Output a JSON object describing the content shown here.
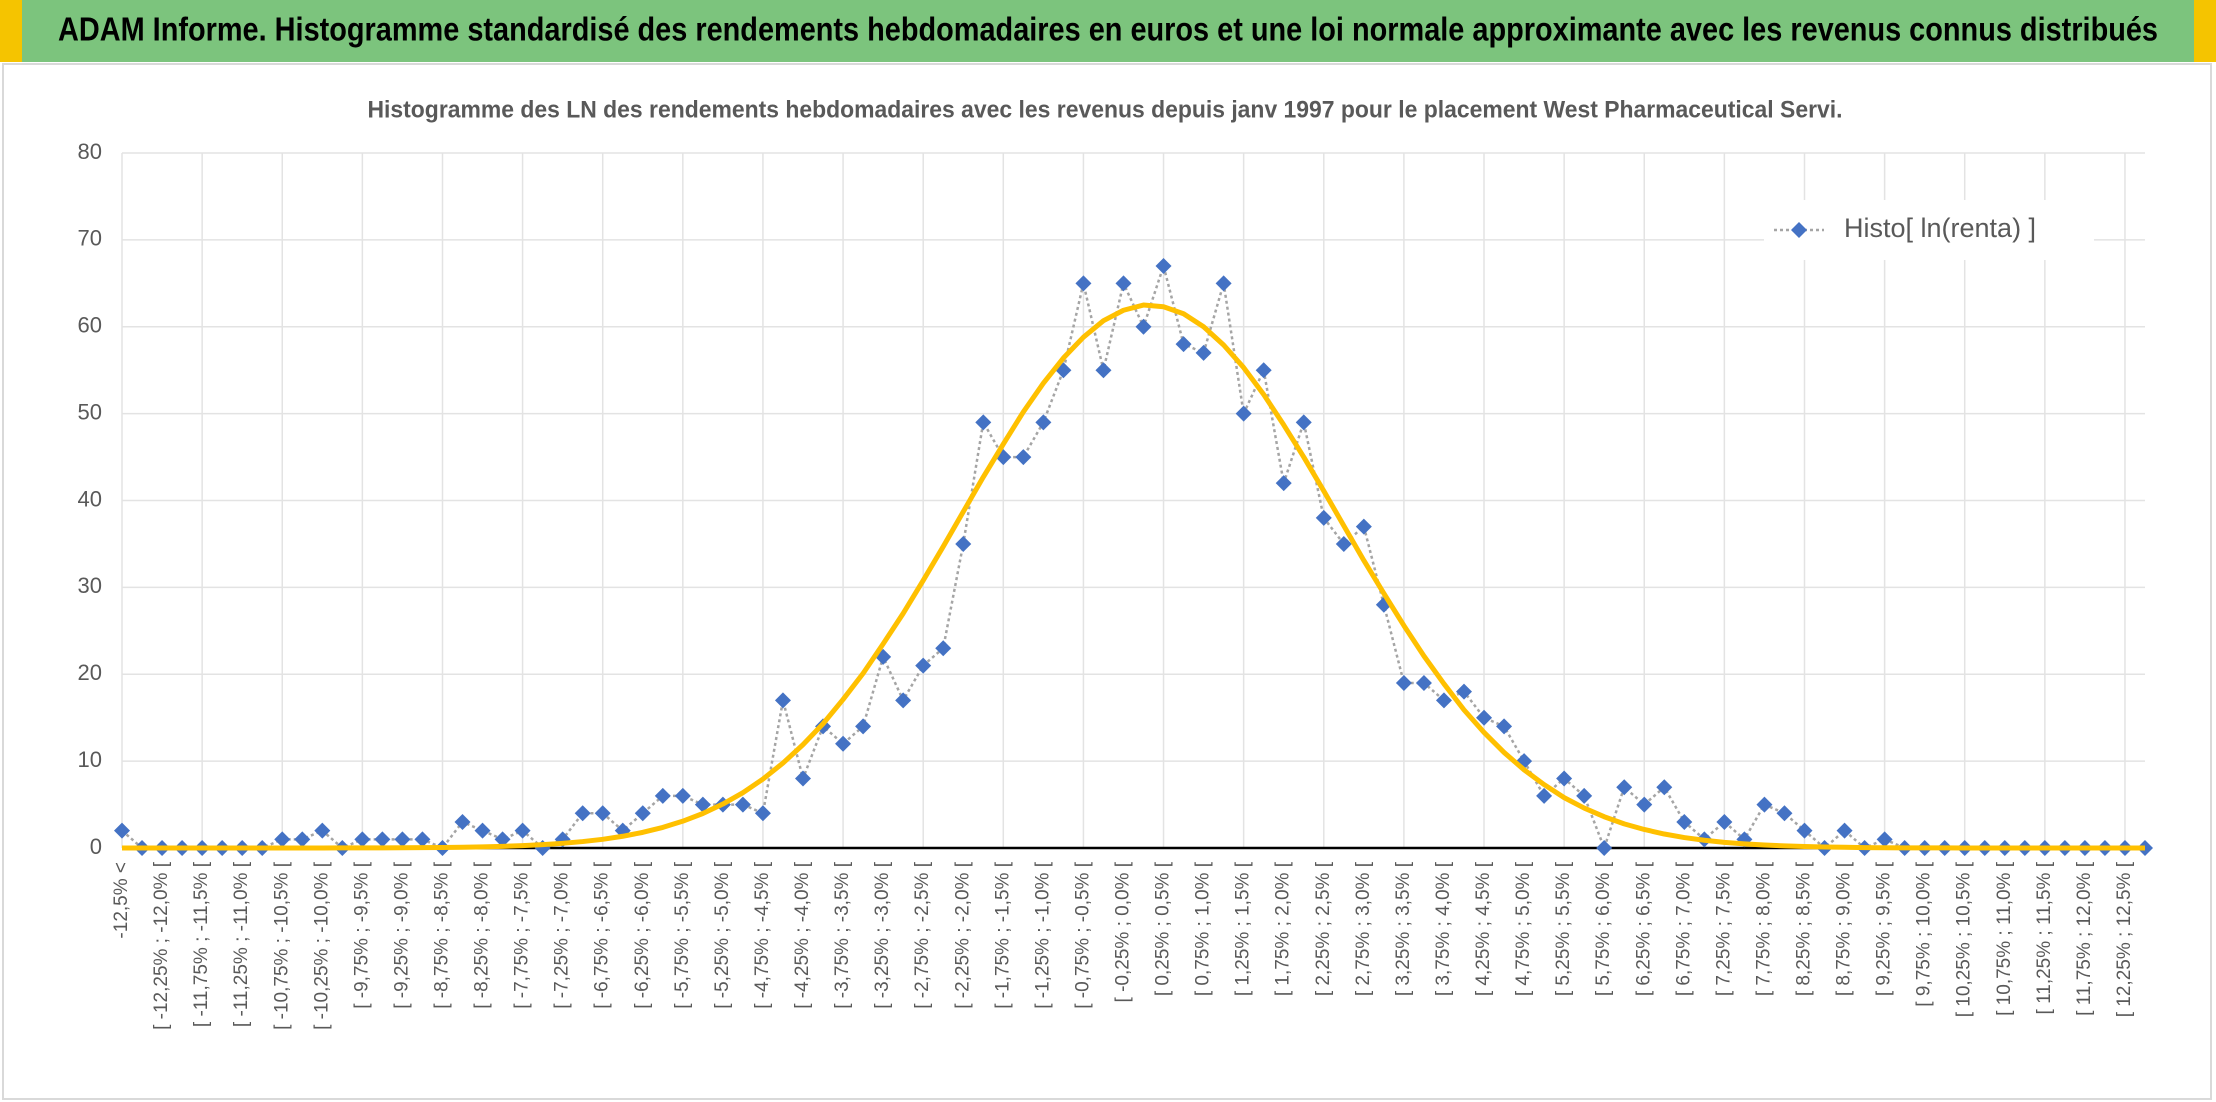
{
  "header": {
    "title": "ADAM Informe. Histogramme standardisé des rendements hebdomadaires en euros et une loi normale approximante avec les revenus connus distribués"
  },
  "chart_data": {
    "type": "line",
    "title": "Histogramme des LN des rendements hebdomadaires avec les revenus depuis janv 1997 pour le placement West Pharmaceutical Servi.",
    "categories": [
      "-12,5% <",
      null,
      "[ -12,25% ; -12,0% [",
      null,
      "[ -11,75% ; -11,5% [",
      null,
      "[ -11,25% ; -11,0% [",
      null,
      "[ -10,75% ; -10,5% [",
      null,
      "[ -10,25% ; -10,0% [",
      null,
      "[ -9,75% ; -9,5% [",
      null,
      "[ -9,25% ; -9,0% [",
      null,
      "[ -8,75% ; -8,5% [",
      null,
      "[ -8,25% ; -8,0% [",
      null,
      "[ -7,75% ; -7,5% [",
      null,
      "[ -7,25% ; -7,0% [",
      null,
      "[ -6,75% ; -6,5% [",
      null,
      "[ -6,25% ; -6,0% [",
      null,
      "[ -5,75% ; -5,5% [",
      null,
      "[ -5,25% ; -5,0% [",
      null,
      "[ -4,75% ; -4,5% [",
      null,
      "[ -4,25% ; -4,0% [",
      null,
      "[ -3,75% ; -3,5% [",
      null,
      "[ -3,25% ; -3,0% [",
      null,
      "[ -2,75% ; -2,5% [",
      null,
      "[ -2,25% ; -2,0% [",
      null,
      "[ -1,75% ; -1,5% [",
      null,
      "[ -1,25% ; -1,0% [",
      null,
      "[ -0,75% ; -0,5% [",
      null,
      "[ -0,25% ; 0,0% [",
      null,
      "[ 0,25% ; 0,5% [",
      null,
      "[ 0,75% ; 1,0% [",
      null,
      "[ 1,25% ; 1,5% [",
      null,
      "[ 1,75% ; 2,0% [",
      null,
      "[ 2,25% ; 2,5% [",
      null,
      "[ 2,75% ; 3,0% [",
      null,
      "[ 3,25% ; 3,5% [",
      null,
      "[ 3,75% ; 4,0% [",
      null,
      "[ 4,25% ; 4,5% [",
      null,
      "[ 4,75% ; 5,0% [",
      null,
      "[ 5,25% ; 5,5% [",
      null,
      "[ 5,75% ; 6,0% [",
      null,
      "[ 6,25% ; 6,5% [",
      null,
      "[ 6,75% ; 7,0% [",
      null,
      "[ 7,25% ; 7,5% [",
      null,
      "[ 7,75% ; 8,0% [",
      null,
      "[ 8,25% ; 8,5% [",
      null,
      "[ 8,75% ; 9,0% [",
      null,
      "[ 9,25% ; 9,5% [",
      null,
      "[ 9,75% ; 10,0% [",
      null,
      "[ 10,25% ; 10,5% [",
      null,
      "[ 10,75% ; 11,0% [",
      null,
      "[ 11,25% ; 11,5% [",
      null,
      "[ 11,75% ; 12,0% [",
      null,
      "[ 12,25% ; 12,5% [",
      null
    ],
    "series": [
      {
        "name": "Histo[ ln(renta) ]",
        "color": "#4472c4",
        "line_color": "#a5a5a5",
        "values": [
          2,
          0,
          0,
          0,
          0,
          0,
          0,
          0,
          1,
          1,
          2,
          0,
          1,
          1,
          1,
          1,
          0,
          3,
          2,
          1,
          2,
          0,
          1,
          4,
          4,
          2,
          4,
          6,
          6,
          5,
          5,
          5,
          4,
          17,
          8,
          14,
          12,
          14,
          22,
          17,
          21,
          23,
          35,
          49,
          45,
          45,
          49,
          55,
          65,
          55,
          65,
          60,
          67,
          58,
          57,
          65,
          50,
          55,
          42,
          49,
          38,
          35,
          37,
          28,
          19,
          19,
          17,
          18,
          15,
          14,
          10,
          6,
          8,
          6,
          0,
          7,
          5,
          7,
          3,
          1,
          3,
          1,
          5,
          4,
          2,
          0,
          2,
          0,
          1,
          0,
          0,
          0,
          0,
          0,
          0,
          0,
          0,
          0,
          0,
          0,
          0,
          0
        ]
      },
      {
        "color": "#ffc000",
        "values": [
          0,
          0,
          0,
          0,
          0,
          0,
          0,
          0,
          0,
          0,
          0,
          0.01,
          0.01,
          0.02,
          0.03,
          0.04,
          0.06,
          0.09,
          0.13,
          0.19,
          0.27,
          0.39,
          0.54,
          0.74,
          1.0,
          1.35,
          1.8,
          2.37,
          3.09,
          3.97,
          5.06,
          6.37,
          7.94,
          9.78,
          11.9,
          14.3,
          17.1,
          20.1,
          23.5,
          27.0,
          30.8,
          34.7,
          38.7,
          42.7,
          46.5,
          50.2,
          53.5,
          56.4,
          58.8,
          60.7,
          61.9,
          62.5,
          62.3,
          61.5,
          60.0,
          57.9,
          55.3,
          52.2,
          48.7,
          45.0,
          41.1,
          37.1,
          33.1,
          29.3,
          25.6,
          22.1,
          18.9,
          15.9,
          13.3,
          11.0,
          9.0,
          7.3,
          5.8,
          4.6,
          3.6,
          2.78,
          2.13,
          1.61,
          1.2,
          0.89,
          0.65,
          0.47,
          0.34,
          0.24,
          0.17,
          0.12,
          0.08,
          0.05,
          0.03,
          0.02,
          0.01,
          0.01,
          0,
          0,
          0,
          0,
          0,
          0,
          0,
          0,
          0,
          0
        ]
      }
    ],
    "ylim": [
      0,
      80
    ],
    "yticks": [
      0,
      10,
      20,
      30,
      40,
      50,
      60,
      70,
      80
    ],
    "grid": true,
    "legend": "top-right"
  }
}
